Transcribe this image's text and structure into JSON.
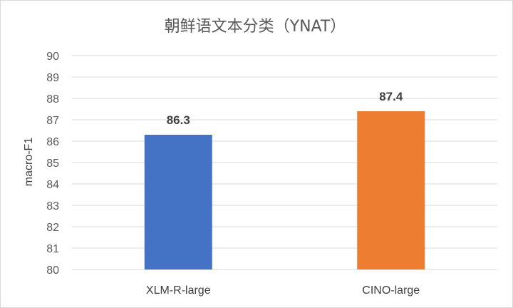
{
  "chart_data": {
    "type": "bar",
    "title": "朝鲜语文本分类（YNAT）",
    "xlabel": "",
    "ylabel": "macro-F1",
    "categories": [
      "XLM-R-large",
      "CINO-large"
    ],
    "values": [
      86.3,
      87.4
    ],
    "value_labels": [
      "86.3",
      "87.4"
    ],
    "bar_colors": [
      "#4472c4",
      "#ed7d31"
    ],
    "ylim": [
      80,
      90
    ],
    "yticks": [
      80,
      81,
      82,
      83,
      84,
      85,
      86,
      87,
      88,
      89,
      90
    ],
    "grid": true,
    "legend": "none"
  }
}
